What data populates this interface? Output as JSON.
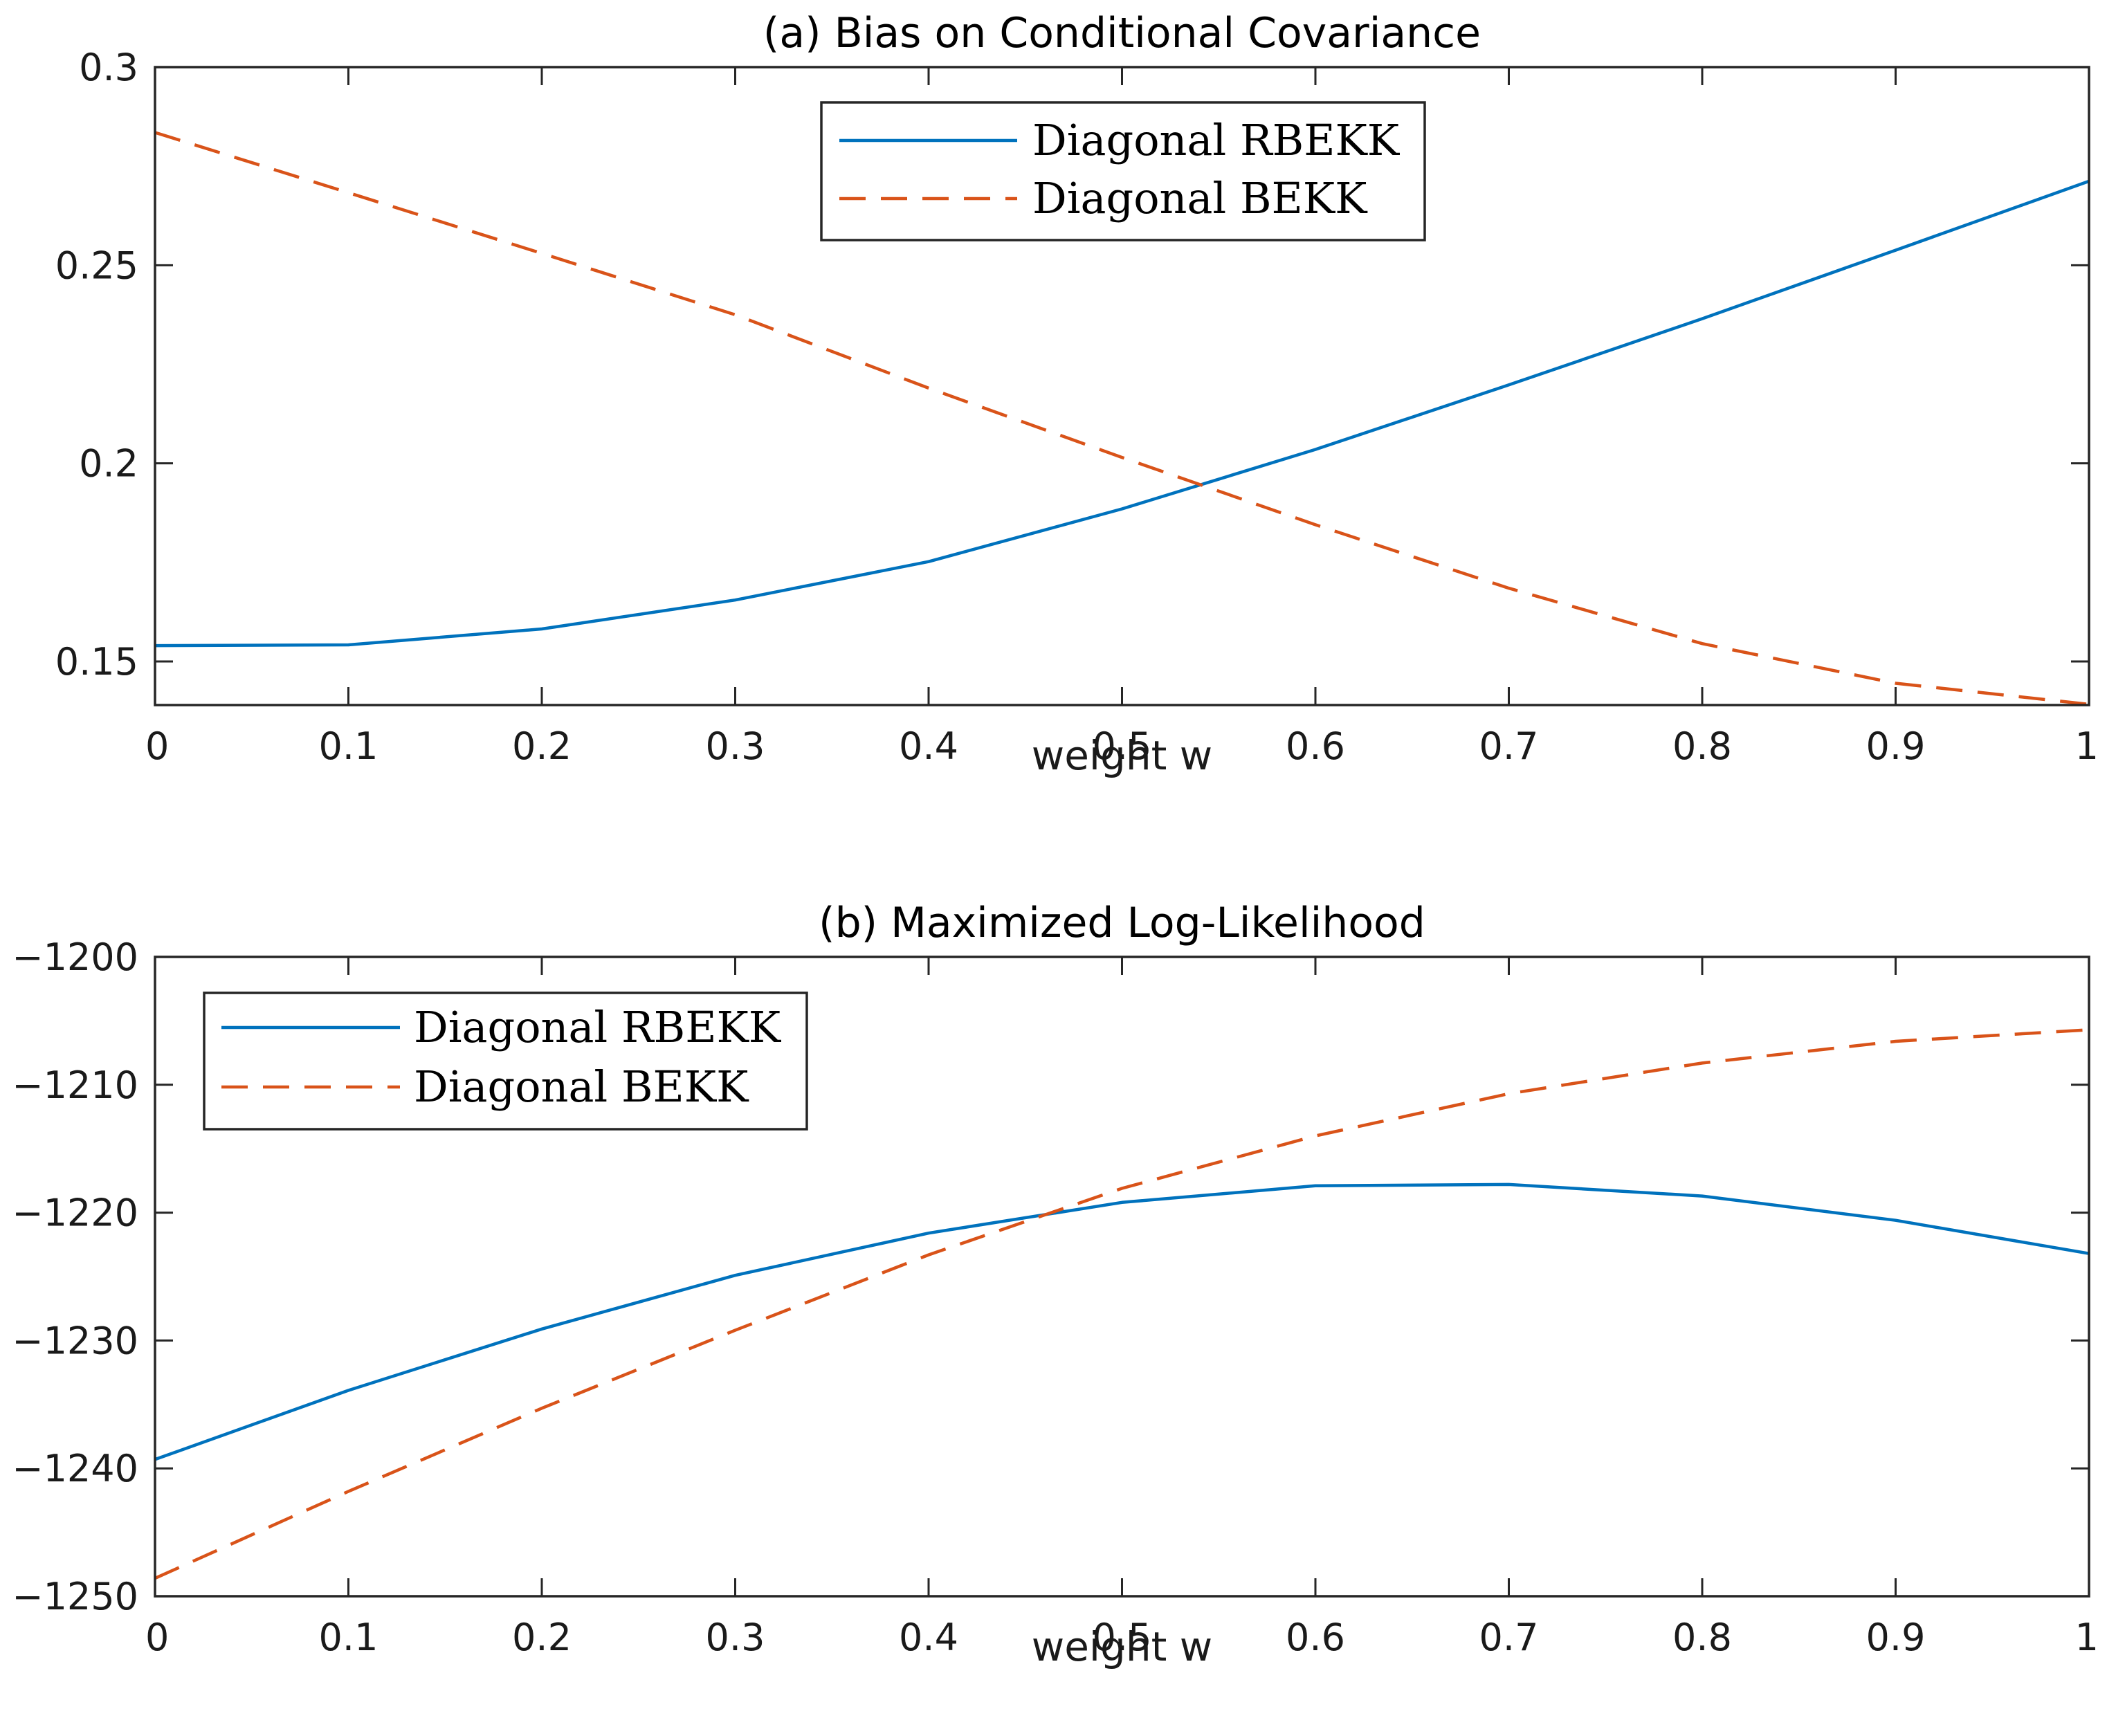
{
  "chart_data": [
    {
      "type": "line",
      "title": "(a) Bias on Conditional Covariance",
      "xlabel": "weight w",
      "ylabel": "",
      "xlim": [
        0,
        1
      ],
      "ylim": [
        0.139,
        0.3
      ],
      "xticks": [
        0,
        0.1,
        0.2,
        0.3,
        0.4,
        0.5,
        0.6,
        0.7,
        0.8,
        0.9,
        1
      ],
      "xtick_labels": [
        "0",
        "0.1",
        "0.2",
        "0.3",
        "0.4",
        "0.5",
        "0.6",
        "0.7",
        "0.8",
        "0.9",
        "1"
      ],
      "yticks": [
        0.15,
        0.2,
        0.25,
        0.3
      ],
      "ytick_labels": [
        "0.15",
        "0.2",
        "0.25",
        "0.3"
      ],
      "x": [
        0,
        0.1,
        0.2,
        0.3,
        0.4,
        0.5,
        0.6,
        0.7,
        0.8,
        0.9,
        1
      ],
      "series": [
        {
          "name": "Diagonal RBEKK",
          "style": "solid",
          "color": "#0072BD",
          "values": [
            0.154,
            0.1542,
            0.1582,
            0.1655,
            0.1752,
            0.1885,
            0.2035,
            0.2198,
            0.2365,
            0.2538,
            0.2712
          ]
        },
        {
          "name": "Diagonal BEKK",
          "style": "dashed",
          "color": "#D95319",
          "values": [
            0.2835,
            0.2683,
            0.253,
            0.2375,
            0.219,
            0.2015,
            0.1845,
            0.1685,
            0.1545,
            0.1445,
            0.1392
          ]
        }
      ],
      "legend": "top-center",
      "grid": false
    },
    {
      "type": "line",
      "title": "(b) Maximized Log-Likelihood",
      "xlabel": "weight w",
      "ylabel": "",
      "xlim": [
        0,
        1
      ],
      "ylim": [
        -1250,
        -1200
      ],
      "xticks": [
        0,
        0.1,
        0.2,
        0.3,
        0.4,
        0.5,
        0.6,
        0.7,
        0.8,
        0.9,
        1
      ],
      "xtick_labels": [
        "0",
        "0.1",
        "0.2",
        "0.3",
        "0.4",
        "0.5",
        "0.6",
        "0.7",
        "0.8",
        "0.9",
        "1"
      ],
      "yticks": [
        -1250,
        -1240,
        -1230,
        -1220,
        -1210,
        -1200
      ],
      "ytick_labels": [
        "−1250",
        "−1240",
        "−1230",
        "−1220",
        "−1210",
        "−1200"
      ],
      "x": [
        0,
        0.1,
        0.2,
        0.3,
        0.4,
        0.5,
        0.6,
        0.7,
        0.8,
        0.9,
        1
      ],
      "series": [
        {
          "name": "Diagonal RBEKK",
          "style": "solid",
          "color": "#0072BD",
          "values": [
            -1239.3,
            -1233.9,
            -1229.1,
            -1224.9,
            -1221.6,
            -1219.2,
            -1217.9,
            -1217.8,
            -1218.7,
            -1220.6,
            -1223.2
          ]
        },
        {
          "name": "Diagonal BEKK",
          "style": "dashed",
          "color": "#D95319",
          "values": [
            -1248.6,
            -1241.8,
            -1235.3,
            -1229.2,
            -1223.3,
            -1218.1,
            -1214.0,
            -1210.7,
            -1208.3,
            -1206.6,
            -1205.7
          ]
        }
      ],
      "legend": "top-left",
      "grid": false
    }
  ]
}
